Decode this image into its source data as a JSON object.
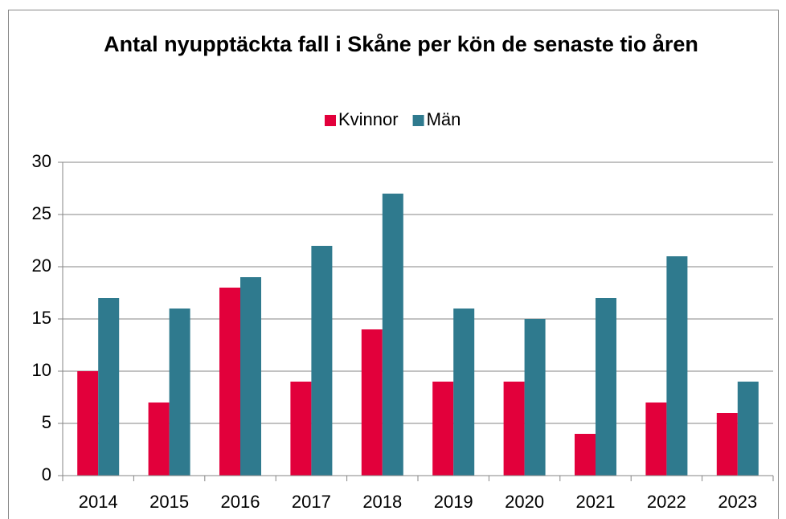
{
  "chart_data": {
    "type": "bar",
    "title": "Antal nyupptäckta fall i Skåne per kön de senaste tio åren",
    "categories": [
      "2014",
      "2015",
      "2016",
      "2017",
      "2018",
      "2019",
      "2020",
      "2021",
      "2022",
      "2023"
    ],
    "series": [
      {
        "name": "Kvinnor",
        "color": "#e2003b",
        "values": [
          10,
          7,
          18,
          9,
          14,
          9,
          9,
          4,
          7,
          6
        ]
      },
      {
        "name": "Män",
        "color": "#2f7a8e",
        "values": [
          17,
          16,
          19,
          22,
          27,
          16,
          15,
          17,
          21,
          9
        ]
      }
    ],
    "ylim": [
      0,
      30
    ],
    "yticks": [
      0,
      5,
      10,
      15,
      20,
      25,
      30
    ],
    "grid": true,
    "legend": "top"
  }
}
